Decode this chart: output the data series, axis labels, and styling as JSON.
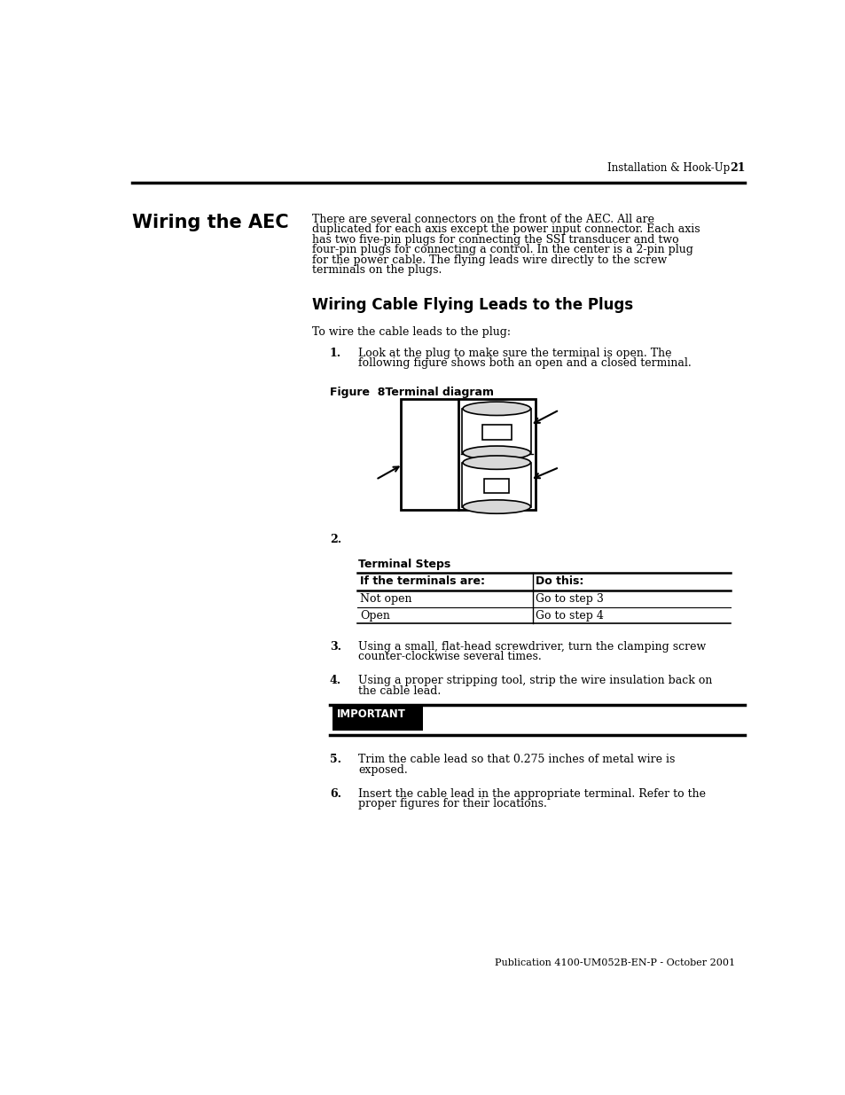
{
  "page_header_right": "Installation & Hook-Up",
  "page_number": "21",
  "section_title": "Wiring the AEC",
  "section_body_lines": [
    "There are several connectors on the front of the AEC. All are",
    "duplicated for each axis except the power input connector. Each axis",
    "has two five-pin plugs for connecting the SSI transducer and two",
    "four-pin plugs for connecting a control. In the center is a 2-pin plug",
    "for the power cable. The flying leads wire directly to the screw",
    "terminals on the plugs."
  ],
  "subsection_title": "Wiring Cable Flying Leads to the Plugs",
  "intro_text": "To wire the cable leads to the plug:",
  "step1_num": "1.",
  "step1_text_lines": [
    "Look at the plug to make sure the terminal is open. The",
    "following figure shows both an open and a closed terminal."
  ],
  "figure_label": "Figure  8Terminal diagram",
  "step2_num": "2.",
  "table_title": "Terminal Steps",
  "table_col1_header": "If the terminals are:",
  "table_col2_header": "Do this:",
  "table_row1_col1": "Not open",
  "table_row1_col2": "Go to step 3",
  "table_row2_col1": "Open",
  "table_row2_col2": "Go to step 4",
  "step3_num": "3.",
  "step3_text_lines": [
    "Using a small, flat-head screwdriver, turn the clamping screw",
    "counter-clockwise several times."
  ],
  "step4_num": "4.",
  "step4_text_lines": [
    "Using a proper stripping tool, strip the wire insulation back on",
    "the cable lead."
  ],
  "important_label": "IMPORTANT",
  "step5_num": "5.",
  "step5_text_lines": [
    "Trim the cable lead so that 0.275 inches of metal wire is",
    "exposed."
  ],
  "step6_num": "6.",
  "step6_text_lines": [
    "Insert the cable lead in the appropriate terminal. Refer to the",
    "proper figures for their locations."
  ],
  "footer_text": "Publication 4100-UM052B-EN-P - October 2001",
  "bg_color": "#ffffff",
  "text_color": "#000000"
}
